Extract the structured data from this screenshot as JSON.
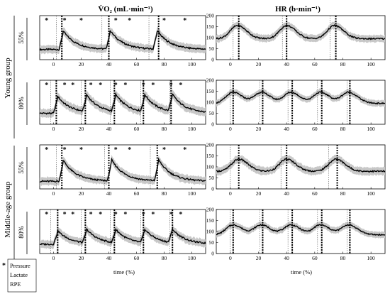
{
  "chart_data": [
    {
      "panel": "vo2-young-55",
      "type": "line",
      "column_title": "V̇O₂ (mL·min⁻¹)",
      "group": "Young group",
      "intensity": "55%",
      "xlim": [
        -10,
        110
      ],
      "ylim": [
        0,
        2600
      ],
      "x_ticks": [
        0,
        20,
        40,
        60,
        80,
        100
      ],
      "y_ticks": [],
      "xlabel": "",
      "stars_x": [
        -5,
        8,
        20,
        45,
        55,
        80,
        95
      ],
      "markers_thin": [
        2,
        35,
        69
      ],
      "markers_thick": [
        6,
        40,
        76
      ],
      "series": [
        {
          "profile": "vo2",
          "peaks": [
            7,
            41,
            75
          ],
          "base": 600,
          "peak": 1700,
          "sd": 260
        }
      ]
    },
    {
      "panel": "vo2-young-80",
      "type": "line",
      "column_title": "",
      "group": "Young group",
      "intensity": "80%",
      "xlim": [
        -10,
        110
      ],
      "ylim": [
        0,
        2600
      ],
      "x_ticks": [
        0,
        20,
        40,
        60,
        80,
        100
      ],
      "y_ticks": [],
      "xlabel": "",
      "stars_x": [
        -5,
        8,
        14,
        27,
        34,
        45,
        52,
        65,
        72,
        85,
        92
      ],
      "markers_thin": [
        -2,
        20,
        41,
        63,
        84
      ],
      "markers_thick": [
        2,
        23,
        44,
        65,
        85
      ],
      "series": [
        {
          "profile": "vo2",
          "peaks": [
            3,
            24,
            45,
            66,
            86
          ],
          "base": 650,
          "peak": 1650,
          "sd": 280
        }
      ]
    },
    {
      "panel": "vo2-middle-55",
      "type": "line",
      "column_title": "",
      "group": "Middle-age group",
      "intensity": "55%",
      "xlim": [
        -10,
        110
      ],
      "ylim": [
        0,
        2600
      ],
      "x_ticks": [
        0,
        20,
        40,
        60,
        80,
        100
      ],
      "y_ticks": [],
      "xlabel": "",
      "stars_x": [
        -5,
        8,
        20,
        45,
        55,
        80,
        95
      ],
      "markers_thin": [
        2,
        37,
        70
      ],
      "markers_thick": [
        6,
        40,
        75
      ],
      "series": [
        {
          "profile": "vo2",
          "peaks": [
            7,
            42,
            76
          ],
          "base": 450,
          "peak": 1700,
          "sd": 260
        }
      ]
    },
    {
      "panel": "vo2-middle-80",
      "type": "line",
      "column_title": "",
      "group": "Middle-age group",
      "intensity": "80%",
      "xlim": [
        -10,
        110
      ],
      "ylim": [
        0,
        2600
      ],
      "x_ticks": [
        0,
        20,
        40,
        60,
        80,
        100
      ],
      "y_ticks": [],
      "xlabel": "time (%)",
      "stars_x": [
        -5,
        8,
        14,
        27,
        34,
        45,
        52,
        65,
        72,
        85,
        92
      ],
      "markers_thin": [
        -2,
        20,
        41,
        63,
        84
      ],
      "markers_thick": [
        3,
        23,
        44,
        65,
        86
      ],
      "series": [
        {
          "profile": "vo2",
          "peaks": [
            3,
            24,
            45,
            66,
            86
          ],
          "base": 550,
          "peak": 1350,
          "sd": 260
        }
      ]
    },
    {
      "panel": "hr-young-55",
      "type": "line",
      "column_title": "HR (b·min⁻¹)",
      "group": "Young group",
      "intensity": "55%",
      "xlim": [
        -10,
        110
      ],
      "ylim": [
        0,
        200
      ],
      "x_ticks": [
        0,
        20,
        40,
        60,
        80,
        100
      ],
      "y_ticks": [
        0,
        50,
        100,
        150,
        200
      ],
      "xlabel": "",
      "stars_x": [],
      "markers_thin": [
        2,
        37,
        71
      ],
      "markers_thick": [
        6,
        40,
        75
      ],
      "series": [
        {
          "profile": "hr",
          "peaks": [
            5,
            40,
            74
          ],
          "base": 95,
          "peak": 155,
          "sd": 18
        }
      ]
    },
    {
      "panel": "hr-young-80",
      "type": "line",
      "column_title": "",
      "group": "Young group",
      "intensity": "80%",
      "xlim": [
        -10,
        110
      ],
      "ylim": [
        0,
        200
      ],
      "x_ticks": [
        0,
        20,
        40,
        60,
        80,
        100
      ],
      "y_ticks": [
        0,
        50,
        100,
        150,
        200
      ],
      "xlabel": "",
      "stars_x": [],
      "markers_thin": [
        0,
        21,
        41,
        62,
        83
      ],
      "markers_thick": [
        2,
        23,
        44,
        65,
        85
      ],
      "series": [
        {
          "profile": "hr",
          "peaks": [
            2,
            22,
            43,
            64,
            84
          ],
          "base": 95,
          "peak": 145,
          "sd": 16
        }
      ]
    },
    {
      "panel": "hr-middle-55",
      "type": "line",
      "column_title": "",
      "group": "Middle-age group",
      "intensity": "55%",
      "xlim": [
        -10,
        110
      ],
      "ylim": [
        0,
        200
      ],
      "x_ticks": [
        0,
        20,
        40,
        60,
        80,
        100
      ],
      "y_ticks": [
        0,
        50,
        100,
        150,
        200
      ],
      "xlabel": "",
      "stars_x": [],
      "markers_thin": [
        0,
        36,
        70
      ],
      "markers_thick": [
        6,
        40,
        76
      ],
      "series": [
        {
          "profile": "hr",
          "peaks": [
            6,
            40,
            75
          ],
          "base": 80,
          "peak": 135,
          "sd": 20
        }
      ]
    },
    {
      "panel": "hr-middle-80",
      "type": "line",
      "column_title": "",
      "group": "Middle-age group",
      "intensity": "80%",
      "xlim": [
        -10,
        110
      ],
      "ylim": [
        0,
        200
      ],
      "x_ticks": [
        0,
        20,
        40,
        60,
        80,
        100
      ],
      "y_ticks": [
        0,
        50,
        100,
        150,
        200
      ],
      "xlabel": "time (%)",
      "stars_x": [],
      "markers_thin": [
        0,
        21,
        41,
        62,
        83
      ],
      "markers_thick": [
        2,
        23,
        44,
        65,
        85
      ],
      "series": [
        {
          "profile": "hr",
          "peaks": [
            2,
            22,
            43,
            64,
            84
          ],
          "base": 85,
          "peak": 130,
          "sd": 16
        }
      ]
    }
  ],
  "labels": {
    "title_vo2": "V̇O₂ (mL·min⁻¹)",
    "title_hr": "HR (b·min⁻¹)",
    "group_young": "Young group",
    "group_middle": "Middle-age group",
    "intensity_55": "55%",
    "intensity_80": "80%",
    "xlabel": "time (%)"
  },
  "legend": {
    "marker": "*",
    "items": [
      "Pressure",
      "Lactate",
      "RPE"
    ]
  },
  "colors": {
    "mean_line": "#000000",
    "sd_band": "#c8c8c8"
  }
}
